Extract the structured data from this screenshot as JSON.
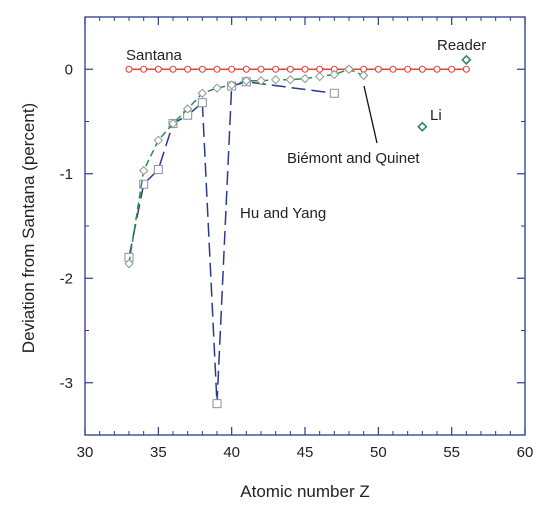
{
  "chart_data": {
    "type": "scatter",
    "title": "",
    "xlabel": "Atomic number Z",
    "ylabel": "Deviation from Santana (percent)",
    "xlim": [
      30,
      60
    ],
    "ylim": [
      -3.5,
      0.5
    ],
    "x_ticks": [
      30,
      35,
      40,
      45,
      50,
      55,
      60
    ],
    "y_ticks": [
      -3,
      -2,
      -1,
      0
    ],
    "x_tick_labels": [
      "30",
      "35",
      "40",
      "45",
      "50",
      "55",
      "60"
    ],
    "y_tick_labels": [
      "-3",
      "-2",
      "-1",
      "0"
    ],
    "grid": false,
    "series": [
      {
        "name": "Santana",
        "color": "#e0453c",
        "marker": "circle",
        "line": "solid",
        "x": [
          33,
          34,
          35,
          36,
          37,
          38,
          39,
          40,
          41,
          42,
          43,
          44,
          45,
          46,
          47,
          48,
          49,
          50,
          51,
          52,
          53,
          54,
          55,
          56
        ],
        "y": [
          0,
          0,
          0,
          0,
          0,
          0,
          0,
          0,
          0,
          0,
          0,
          0,
          0,
          0,
          0,
          0,
          0,
          0,
          0,
          0,
          0,
          0,
          0,
          0
        ]
      },
      {
        "name": "Hu and Yang",
        "color": "#2d3a8c",
        "marker": "square",
        "line": "long-dash",
        "x": [
          33,
          34,
          35,
          36,
          37,
          38,
          39,
          40,
          41,
          47
        ],
        "y": [
          -1.8,
          -1.1,
          -0.96,
          -0.52,
          -0.44,
          -0.32,
          -3.2,
          -0.16,
          -0.12,
          -0.23
        ]
      },
      {
        "name": "Biémont and Quinet",
        "color": "#2e8b57",
        "marker": "diamond",
        "line": "dash",
        "x": [
          33,
          34,
          35,
          36,
          37,
          38,
          39,
          40,
          41,
          42,
          43,
          44,
          45,
          46,
          47,
          48,
          49
        ],
        "y": [
          -1.86,
          -0.97,
          -0.68,
          -0.52,
          -0.38,
          -0.23,
          -0.18,
          -0.15,
          -0.11,
          -0.11,
          -0.1,
          -0.1,
          -0.09,
          -0.07,
          -0.05,
          0.0,
          -0.06
        ]
      },
      {
        "name": "Li",
        "color": "#2e8b57",
        "marker": "diamond",
        "line": "none",
        "x": [
          53
        ],
        "y": [
          -0.55
        ]
      },
      {
        "name": "Reader",
        "color": "#2e8b57",
        "marker": "diamond",
        "line": "none",
        "x": [
          56
        ],
        "y": [
          0.09
        ]
      }
    ],
    "annotations": [
      {
        "text": "Santana"
      },
      {
        "text": "Reader"
      },
      {
        "text": "Li"
      },
      {
        "text": "Biémont and Quinet"
      },
      {
        "text": "Hu and Yang"
      }
    ],
    "frame_color": "#2d3a8c"
  }
}
